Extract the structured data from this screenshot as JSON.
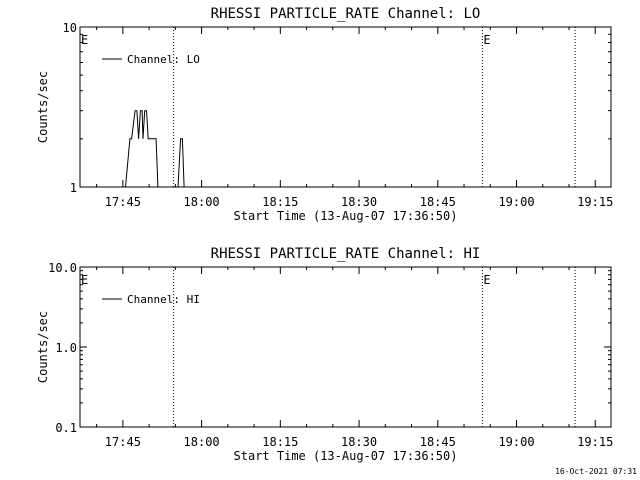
{
  "chart_data": [
    {
      "type": "line",
      "title": "RHESSI PARTICLE_RATE Channel: LO",
      "xlabel": "Start Time (13-Aug-07 17:36:50)",
      "ylabel": "Counts/sec",
      "y_scale": "log",
      "ylim": [
        1,
        10
      ],
      "xlim": [
        "17:36:50",
        "19:18:00"
      ],
      "x_ticks": [
        "17:45",
        "18:00",
        "18:15",
        "18:30",
        "18:45",
        "19:00",
        "19:15"
      ],
      "y_ticks": [
        "1",
        "10"
      ],
      "legend": "top-left",
      "vlines": [
        "17:54:40",
        "18:53:30",
        "19:11:10"
      ],
      "markers": [
        {
          "label": "E",
          "x": "17:36:50"
        },
        {
          "label": "E",
          "x": "18:53:30"
        }
      ],
      "series": [
        {
          "name": "Channel: LO",
          "x": [
            "17:45:30",
            "17:46:20",
            "17:46:40",
            "17:47:20",
            "17:47:40",
            "17:48:00",
            "17:48:20",
            "17:48:40",
            "17:48:50",
            "17:49:10",
            "17:49:30",
            "17:49:50",
            "17:50:20",
            "17:50:40",
            "17:51:20",
            "17:51:40",
            "17:52:10",
            "17:52:20",
            "17:52:40",
            "17:53:40",
            "17:54:00",
            "17:55:30",
            "17:56:00",
            "17:56:20",
            "17:56:40",
            "17:57:10",
            "17:57:30"
          ],
          "values": [
            1,
            2,
            2,
            3,
            3,
            2,
            3,
            3,
            2,
            3,
            3,
            2,
            2,
            2,
            2,
            1,
            1,
            1,
            1,
            1,
            1,
            1,
            2,
            2,
            1,
            1,
            1
          ]
        }
      ]
    },
    {
      "type": "line",
      "title": "RHESSI PARTICLE_RATE Channel: HI",
      "xlabel": "Start Time (13-Aug-07 17:36:50)",
      "ylabel": "Counts/sec",
      "y_scale": "log",
      "ylim": [
        0.1,
        10
      ],
      "xlim": [
        "17:36:50",
        "19:18:00"
      ],
      "x_ticks": [
        "17:45",
        "18:00",
        "18:15",
        "18:30",
        "18:45",
        "19:00",
        "19:15"
      ],
      "y_ticks": [
        "0.1",
        "1.0",
        "10.0"
      ],
      "legend": "top-left",
      "vlines": [
        "17:54:40",
        "18:53:30",
        "19:11:10"
      ],
      "markers": [
        {
          "label": "E",
          "x": "17:36:50"
        },
        {
          "label": "E",
          "x": "18:53:30"
        }
      ],
      "series": [
        {
          "name": "Channel: HI",
          "x": [],
          "values": []
        }
      ]
    }
  ],
  "footer": {
    "timestamp": "16-Oct-2021 07:31"
  }
}
